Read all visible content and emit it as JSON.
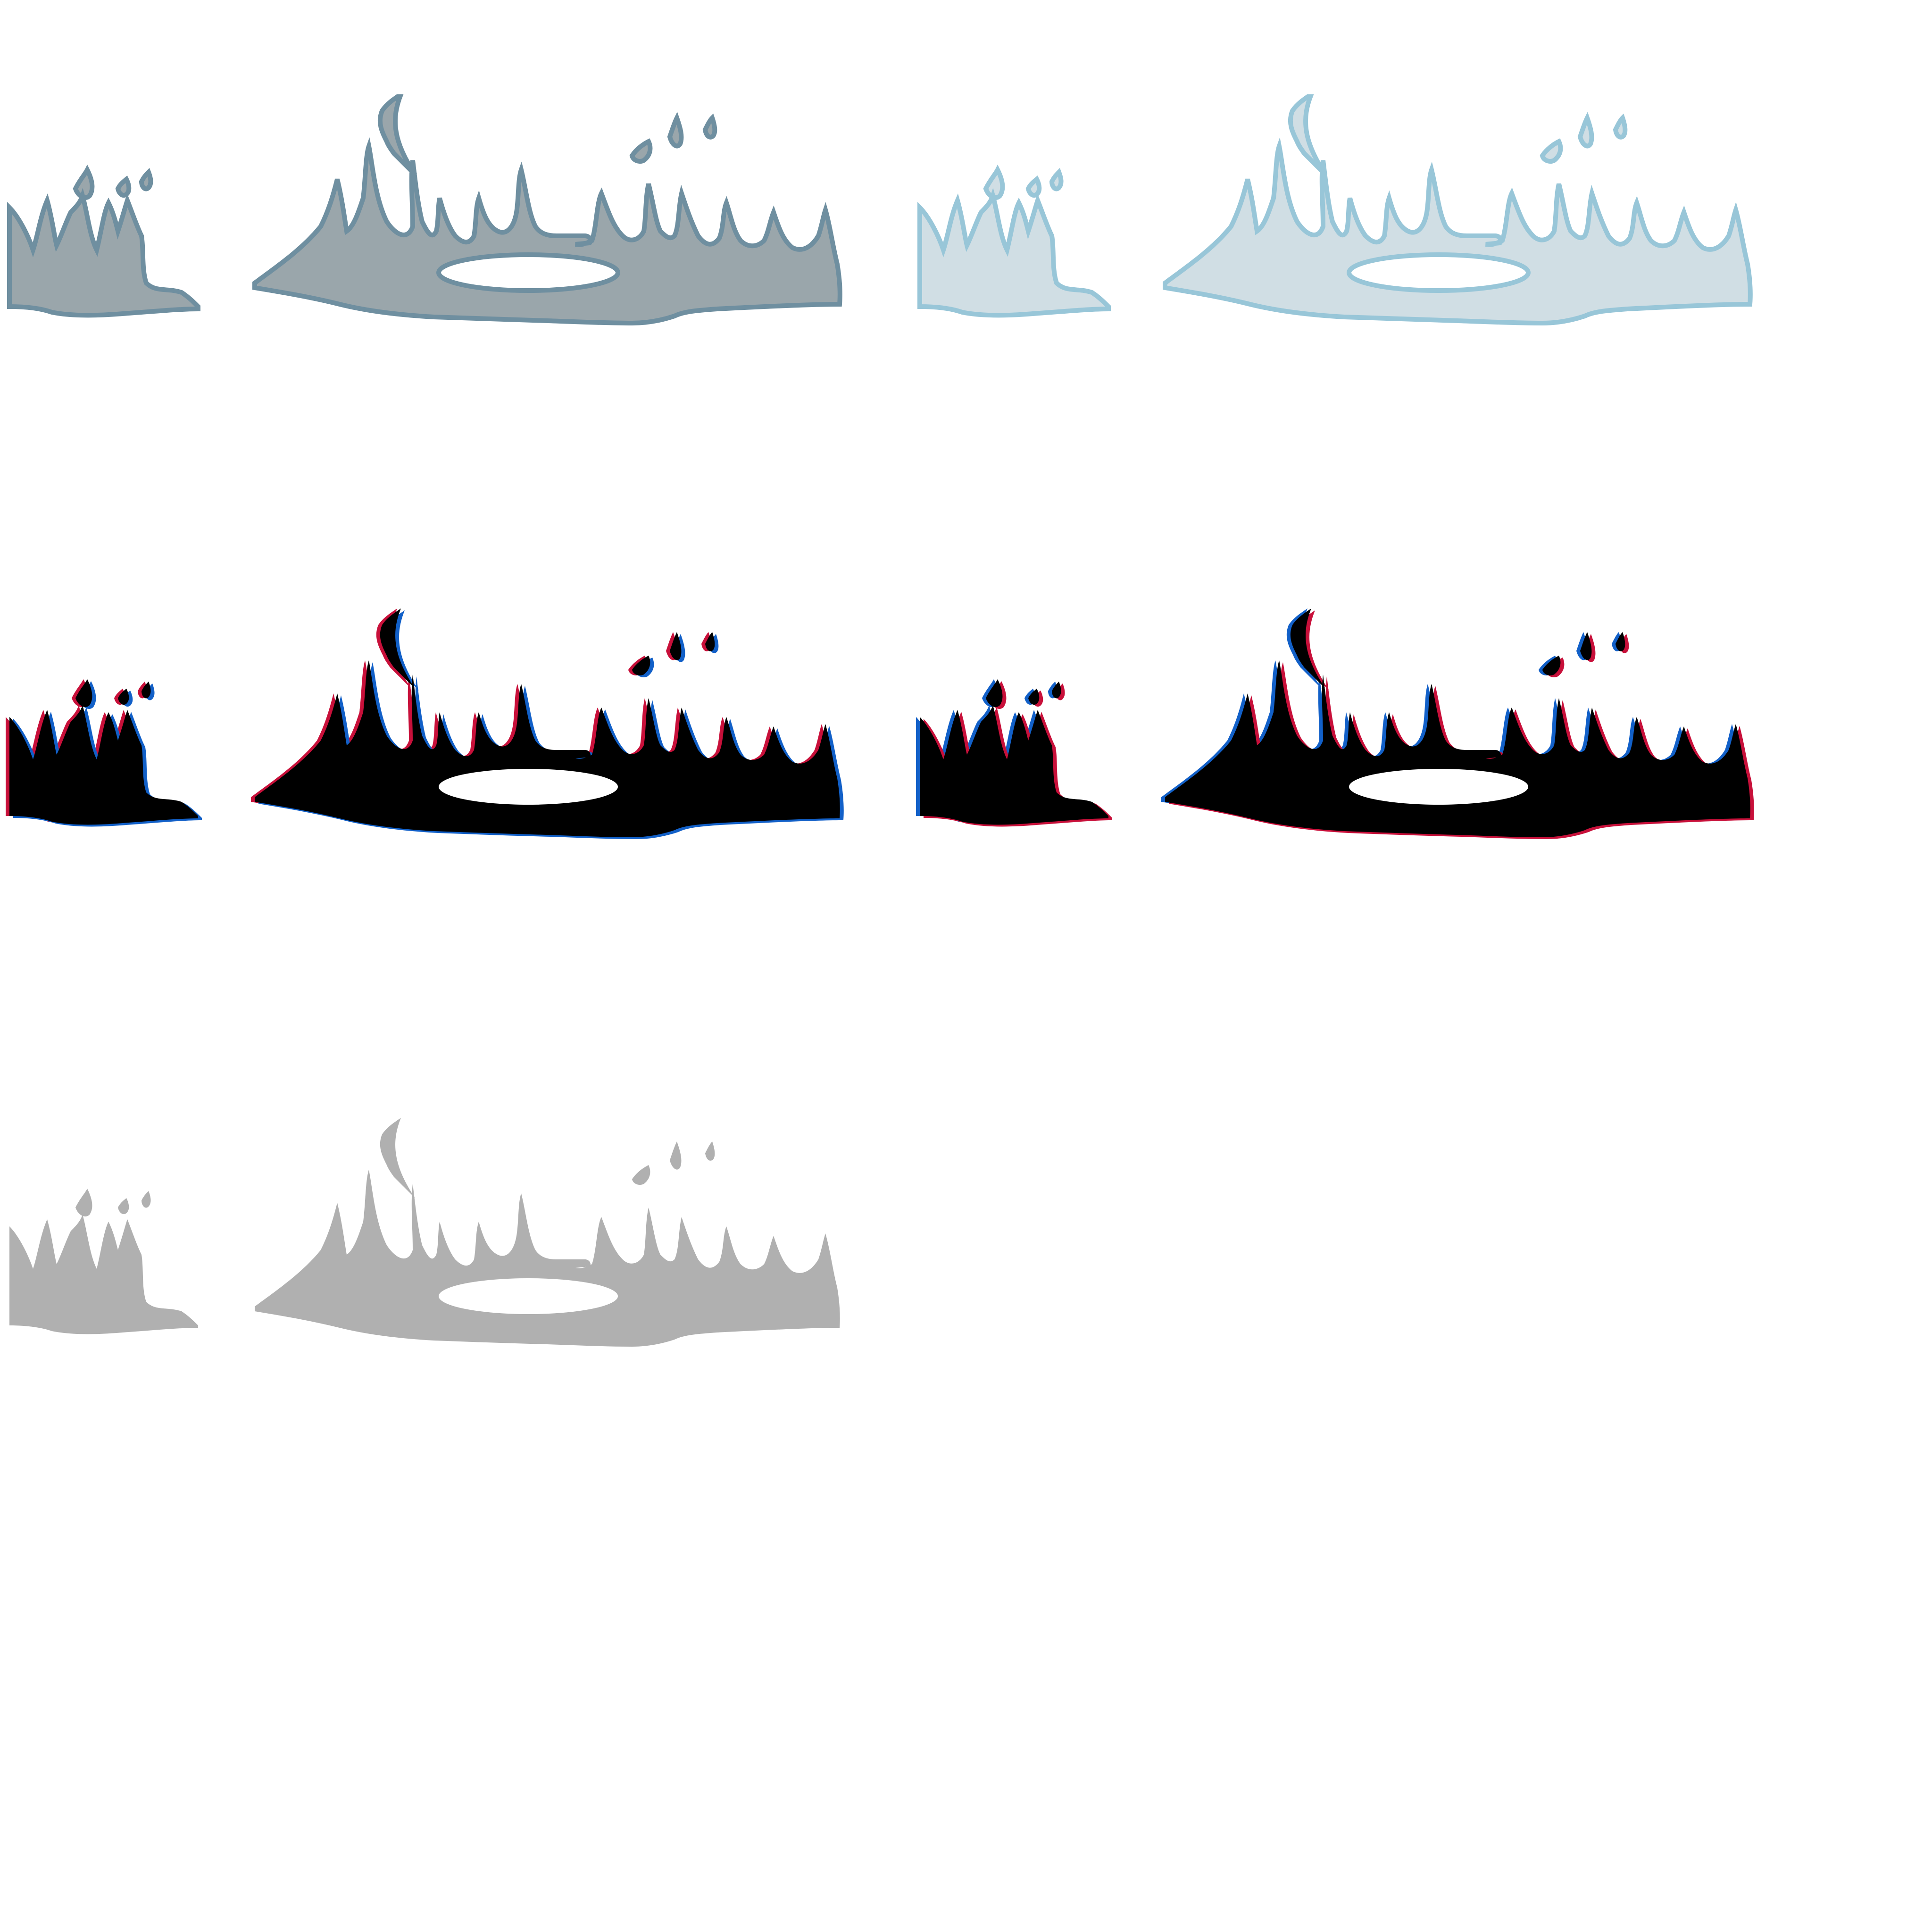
{
  "sheet": {
    "background": "#ffffff",
    "variants": [
      {
        "id": "slate",
        "fill": "#9aa6ab",
        "stroke": "#6f8fa0",
        "highlight": "#7e9db0"
      },
      {
        "id": "ice",
        "fill": "#d0dee4",
        "stroke": "#98c6d8",
        "highlight": "#a9d2e2"
      },
      {
        "id": "glitch-a",
        "fill": "#000000",
        "offset_left": "#c8103a",
        "offset_right": "#1260c8"
      },
      {
        "id": "glitch-b",
        "fill": "#000000",
        "offset_left": "#1260c8",
        "offset_right": "#c8103a"
      },
      {
        "id": "silhouette",
        "fill": "#b0b0b0"
      }
    ]
  }
}
